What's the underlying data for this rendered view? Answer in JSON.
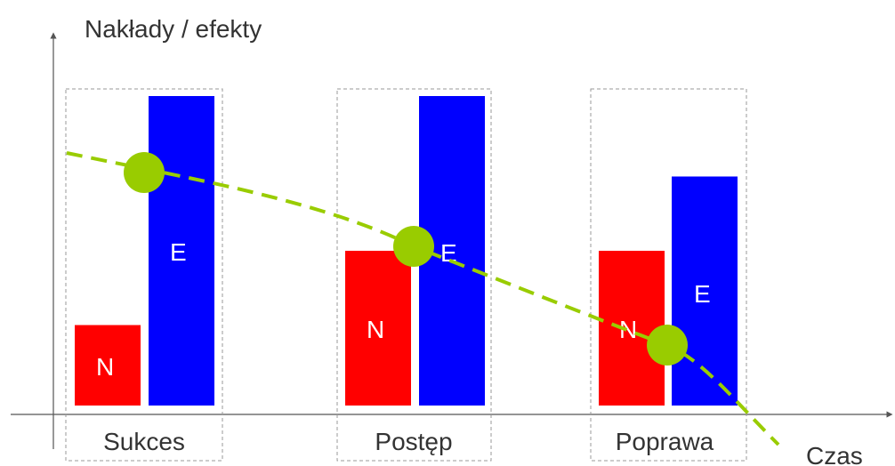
{
  "axes": {
    "y_label": "Nakłady / efekty",
    "x_label": "Czas"
  },
  "colors": {
    "n_bar": "#ff0000",
    "e_bar": "#0000ff",
    "trend": "#99cc00",
    "frame": "#999999",
    "axis": "#555555"
  },
  "groups": [
    {
      "label": "Sukces",
      "n_label": "N",
      "e_label": "E",
      "n_level": 0.26,
      "e_level": 1.0
    },
    {
      "label": "Postęp",
      "n_label": "N",
      "e_label": "E",
      "n_level": 0.5,
      "e_level": 1.0
    },
    {
      "label": "Poprawa",
      "n_label": "N",
      "e_label": "E",
      "n_level": 0.5,
      "e_level": 0.74
    }
  ]
}
